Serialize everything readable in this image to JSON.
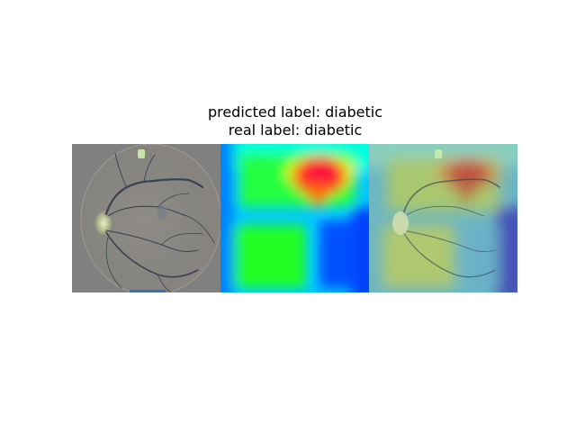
{
  "figure": {
    "title_line1": "predicted label: diabetic",
    "title_line2": "real label: diabetic"
  },
  "panels": [
    {
      "name": "retina-fundus-image",
      "description_color": "#808080"
    },
    {
      "name": "saliency-heatmap",
      "colormap": "jet"
    },
    {
      "name": "heatmap-overlay",
      "colormap": "jet"
    }
  ]
}
